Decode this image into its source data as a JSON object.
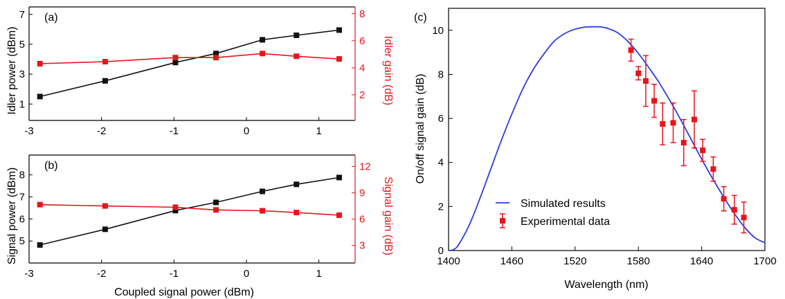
{
  "colors": {
    "black_series": "#111111",
    "red_series": "#e8141c",
    "sim_line": "#2b3be6",
    "axis_red": "#e8141c"
  },
  "chart_data": [
    {
      "panel": "(a)",
      "type": "line",
      "x": [
        -2.85,
        -1.95,
        -0.98,
        -0.42,
        0.22,
        0.69,
        1.28
      ],
      "xlim": [
        -3,
        1.5
      ],
      "x_ticks": [
        -3,
        -2,
        -1,
        0,
        1
      ],
      "x_tick_labels": [
        "-3",
        "-2",
        "-1",
        "0",
        "1"
      ],
      "xlabel": "",
      "left_axis": {
        "label": "Idler power (dBm)",
        "ylim": [
          -0.1,
          7.5
        ],
        "ticks": [
          1,
          3,
          5,
          7
        ],
        "tick_labels": [
          "1",
          "3",
          "5",
          "7"
        ]
      },
      "right_axis": {
        "label": "Idler gain (dB)",
        "ylim": [
          0.1,
          8.5
        ],
        "ticks": [
          2,
          4,
          6,
          8
        ],
        "tick_labels": [
          "2",
          "4",
          "6",
          "8"
        ]
      },
      "series": [
        {
          "axis": "left",
          "color": "#111111",
          "marker": "square",
          "values": [
            1.5,
            2.55,
            3.78,
            4.38,
            5.3,
            5.6,
            5.95
          ]
        },
        {
          "axis": "right",
          "color": "#e8141c",
          "marker": "square",
          "values": [
            4.3,
            4.45,
            4.75,
            4.75,
            5.05,
            4.85,
            4.65
          ]
        }
      ]
    },
    {
      "panel": "(b)",
      "type": "line",
      "x": [
        -2.85,
        -1.95,
        -0.98,
        -0.42,
        0.22,
        0.69,
        1.28
      ],
      "xlim": [
        -3,
        1.5
      ],
      "x_ticks": [
        -3,
        -2,
        -1,
        0,
        1
      ],
      "x_tick_labels": [
        "-3",
        "-2",
        "-1",
        "0",
        "1"
      ],
      "xlabel": "Coupled signal power (dBm)",
      "left_axis": {
        "label": "Signal power (dBm)",
        "ylim": [
          4.0,
          8.9
        ],
        "ticks": [
          5,
          6,
          7,
          8
        ],
        "tick_labels": [
          "5",
          "6",
          "7",
          "8"
        ]
      },
      "right_axis": {
        "label": "Signal gain (dB)",
        "ylim": [
          1.0,
          13.3
        ],
        "ticks": [
          3,
          6,
          9,
          12
        ],
        "tick_labels": [
          "3",
          "6",
          "9",
          "12"
        ]
      },
      "series": [
        {
          "axis": "left",
          "color": "#111111",
          "marker": "square",
          "values": [
            4.82,
            5.53,
            6.38,
            6.75,
            7.25,
            7.57,
            7.88
          ]
        },
        {
          "axis": "right",
          "color": "#e8141c",
          "marker": "square",
          "values": [
            7.65,
            7.5,
            7.35,
            7.05,
            6.95,
            6.75,
            6.45
          ]
        }
      ]
    },
    {
      "panel": "(c)",
      "type": "scatter",
      "xlim": [
        1400,
        1700
      ],
      "ylim": [
        0,
        11
      ],
      "x_ticks": [
        1400,
        1460,
        1520,
        1580,
        1640,
        1700
      ],
      "x_tick_labels": [
        "1400",
        "1460",
        "1520",
        "1580",
        "1640",
        "1700"
      ],
      "y_ticks": [
        0,
        2,
        4,
        6,
        8,
        10
      ],
      "y_tick_labels": [
        "0",
        "2",
        "4",
        "6",
        "8",
        "10"
      ],
      "xlabel": "Wavelength (nm)",
      "ylabel": "On/off signal gain (dB)",
      "legend_position": "bottom-center",
      "series": [
        {
          "name": "Simulated results",
          "type": "line",
          "color": "#2b3be6",
          "x": [
            1400,
            1405,
            1410,
            1420,
            1430,
            1440,
            1450,
            1460,
            1470,
            1480,
            1490,
            1500,
            1510,
            1520,
            1530,
            1540,
            1545,
            1550,
            1560,
            1570,
            1580,
            1590,
            1600,
            1610,
            1620,
            1630,
            1640,
            1650,
            1660,
            1670,
            1680,
            1690,
            1700
          ],
          "values": [
            0,
            0.05,
            0.3,
            1.2,
            2.4,
            3.7,
            5.0,
            6.2,
            7.3,
            8.2,
            8.9,
            9.5,
            9.85,
            10.05,
            10.15,
            10.16,
            10.15,
            10.1,
            9.9,
            9.5,
            8.95,
            8.3,
            7.6,
            6.8,
            5.95,
            5.05,
            4.15,
            3.3,
            2.5,
            1.75,
            1.1,
            0.6,
            0.35
          ]
        },
        {
          "name": "Experimental data",
          "type": "errorbar",
          "color": "#e8141c",
          "x": [
            1573,
            1580,
            1587,
            1595,
            1603,
            1613,
            1623,
            1633,
            1641,
            1651,
            1661,
            1671,
            1680
          ],
          "values": [
            9.1,
            8.05,
            7.7,
            6.8,
            5.75,
            5.8,
            4.9,
            5.95,
            4.55,
            3.7,
            2.35,
            1.85,
            1.5
          ],
          "errors": [
            0.5,
            0.3,
            1.15,
            0.75,
            0.95,
            0.9,
            1.05,
            1.3,
            0.5,
            0.55,
            0.55,
            0.65,
            0.7
          ]
        }
      ]
    }
  ]
}
